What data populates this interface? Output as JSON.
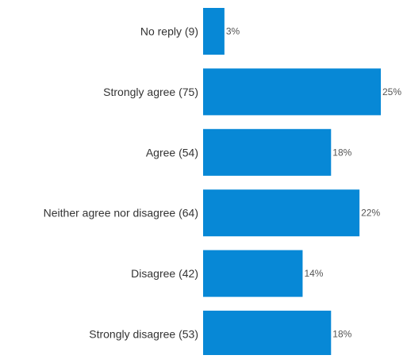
{
  "chart_data": {
    "type": "bar",
    "orientation": "horizontal",
    "categories": [
      "No reply (9)",
      "Strongly agree (75)",
      "Agree (54)",
      "Neither agree nor disagree (64)",
      "Disagree (42)",
      "Strongly disagree (53)"
    ],
    "values": [
      3,
      25,
      18,
      22,
      14,
      18
    ],
    "value_labels": [
      "3%",
      "25%",
      "18%",
      "22%",
      "14%",
      "18%"
    ],
    "bar_color": "#0788d6",
    "grid": false,
    "legend": "none"
  }
}
